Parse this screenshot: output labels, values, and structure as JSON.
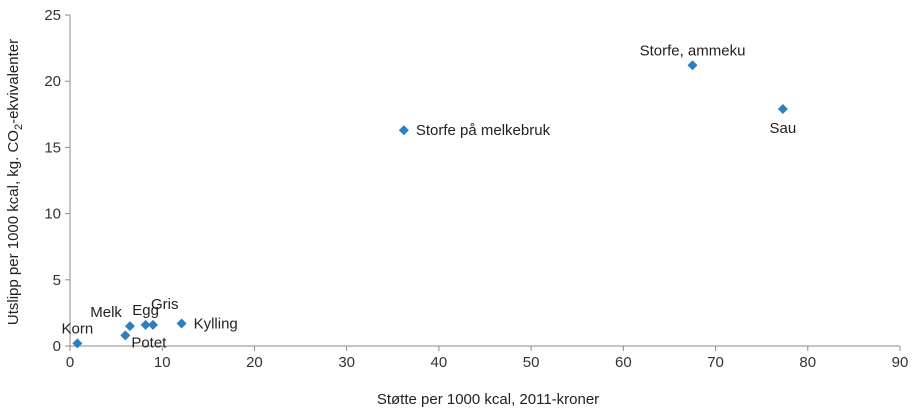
{
  "chart_data": {
    "type": "scatter",
    "title": "",
    "xlabel": "Støtte per 1000 kcal, 2011-kroner",
    "ylabel_parts": [
      "Utslipp per 1000 kcal, kg. CO",
      "2",
      "-ekvivalenter"
    ],
    "xlim": [
      0,
      90
    ],
    "ylim": [
      0,
      25
    ],
    "xticks": [
      0,
      10,
      20,
      30,
      40,
      50,
      60,
      70,
      80,
      90
    ],
    "yticks": [
      0,
      5,
      10,
      15,
      20,
      25
    ],
    "grid": false,
    "marker": "diamond",
    "marker_color": "#2e7fc0",
    "points": [
      {
        "label": "Korn",
        "x": 0.8,
        "y": 0.2,
        "label_pos": "above"
      },
      {
        "label": "Potet",
        "x": 6.0,
        "y": 0.8,
        "label_pos": "right-below"
      },
      {
        "label": "Melk",
        "x": 6.5,
        "y": 1.5,
        "label_pos": "above-left"
      },
      {
        "label": "Egg",
        "x": 8.2,
        "y": 1.6,
        "label_pos": "above"
      },
      {
        "label": "Gris",
        "x": 9.0,
        "y": 1.6,
        "label_pos": "above-right"
      },
      {
        "label": "Kylling",
        "x": 12.1,
        "y": 1.7,
        "label_pos": "right"
      },
      {
        "label": "Storfe på melkebruk",
        "x": 36.2,
        "y": 16.3,
        "label_pos": "right"
      },
      {
        "label": "Storfe, ammeku",
        "x": 67.5,
        "y": 21.2,
        "label_pos": "above"
      },
      {
        "label": "Sau",
        "x": 77.3,
        "y": 17.9,
        "label_pos": "below"
      }
    ]
  }
}
